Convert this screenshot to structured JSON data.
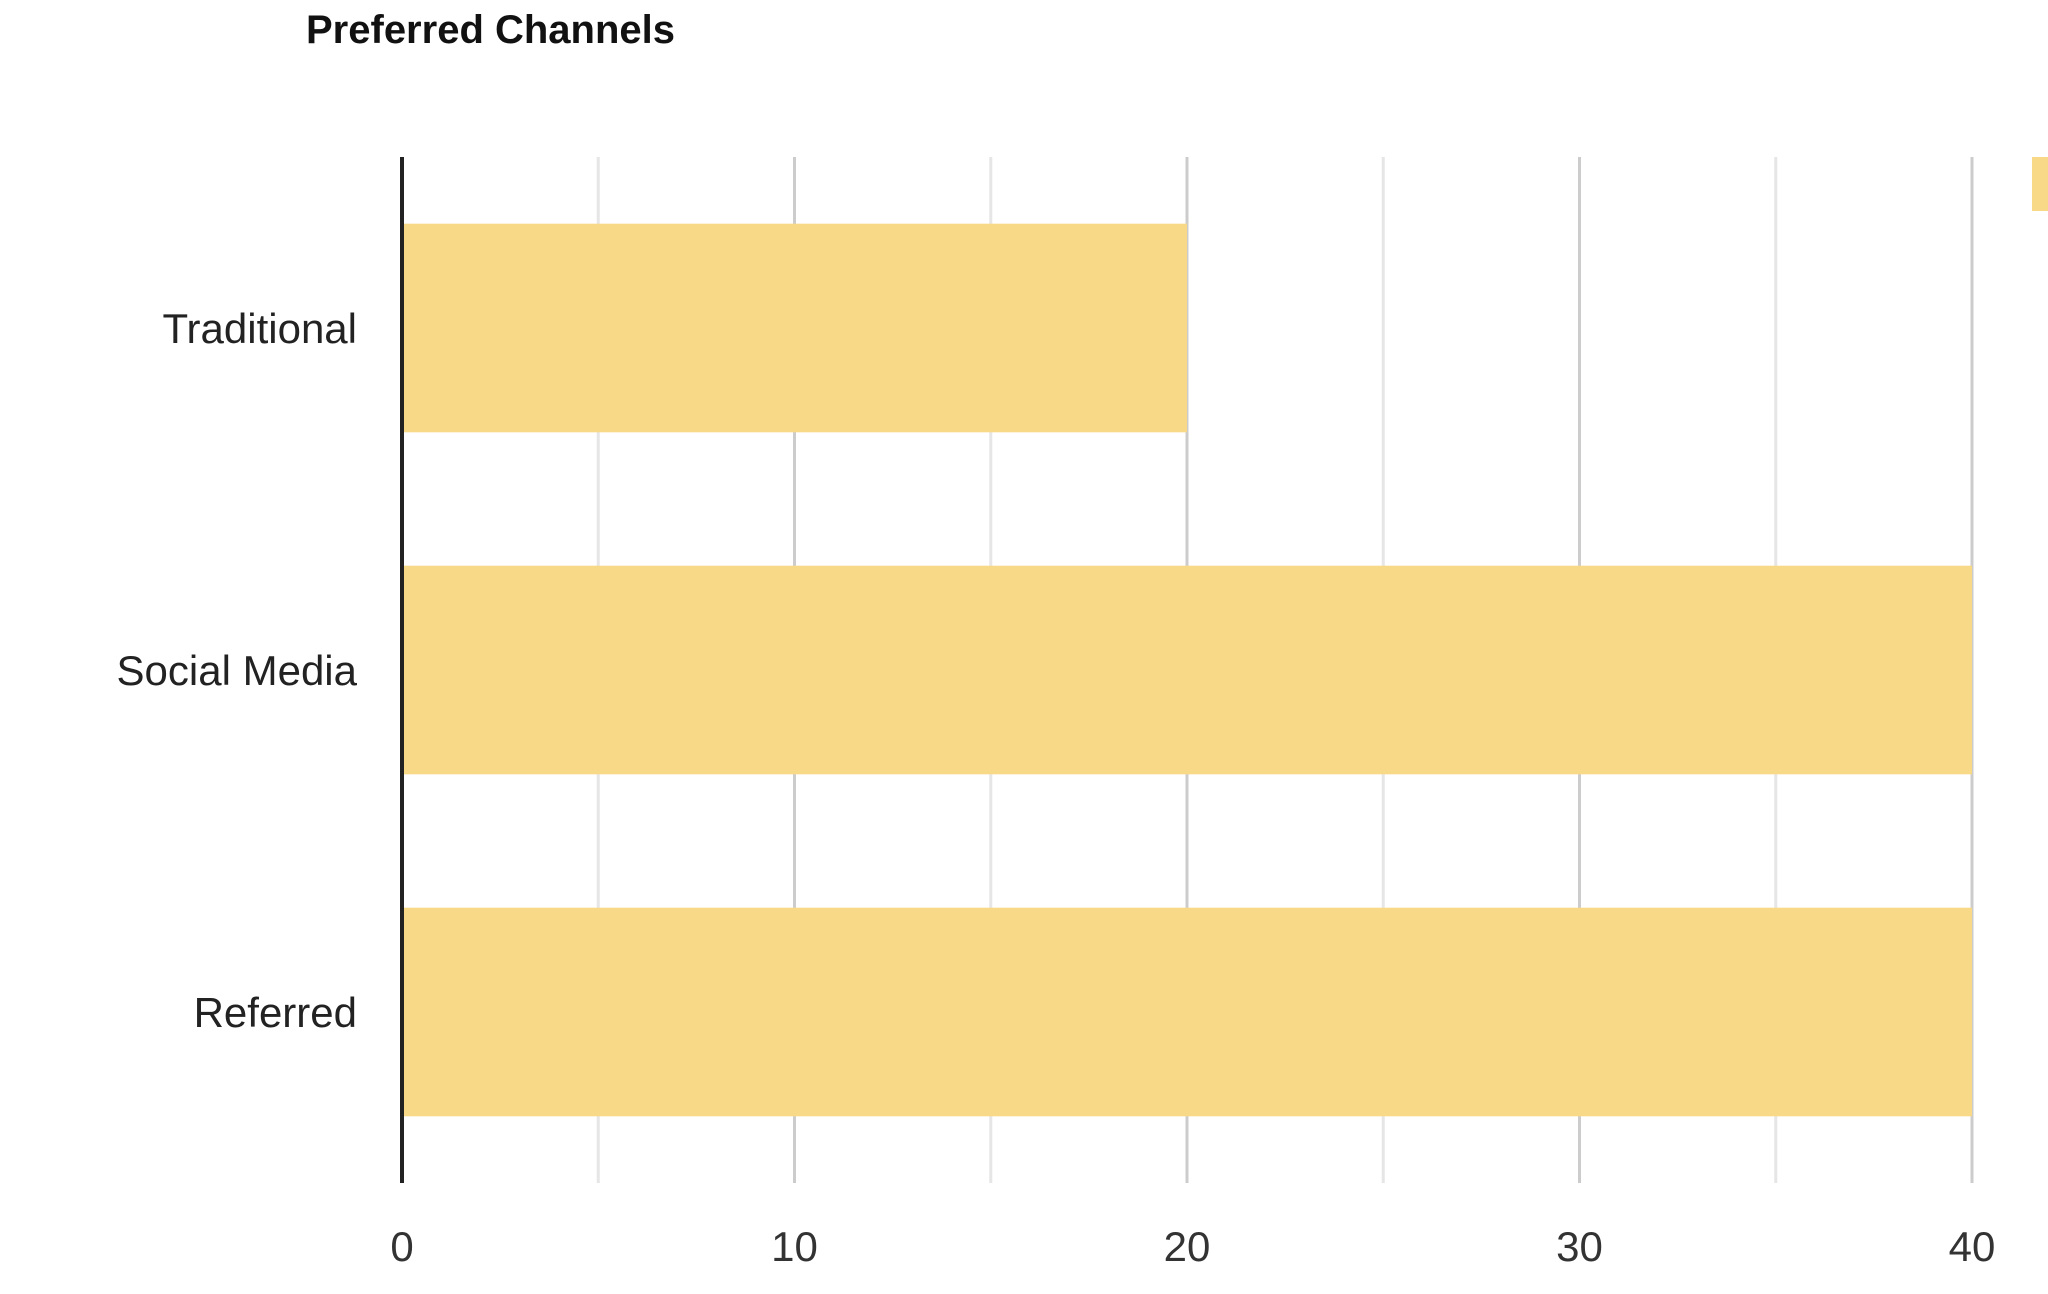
{
  "chart_data": {
    "type": "bar",
    "orientation": "horizontal",
    "title": "Preferred Channels",
    "xlabel": "",
    "ylabel": "",
    "categories": [
      "Traditional",
      "Social Media",
      "Referred"
    ],
    "values": [
      20,
      40,
      40
    ],
    "xlim": [
      0,
      40
    ],
    "x_ticks": [
      "0",
      "10",
      "20",
      "30",
      "40"
    ],
    "grid": true,
    "legend_placement": "top-right",
    "bar_color": "#F7D987"
  }
}
